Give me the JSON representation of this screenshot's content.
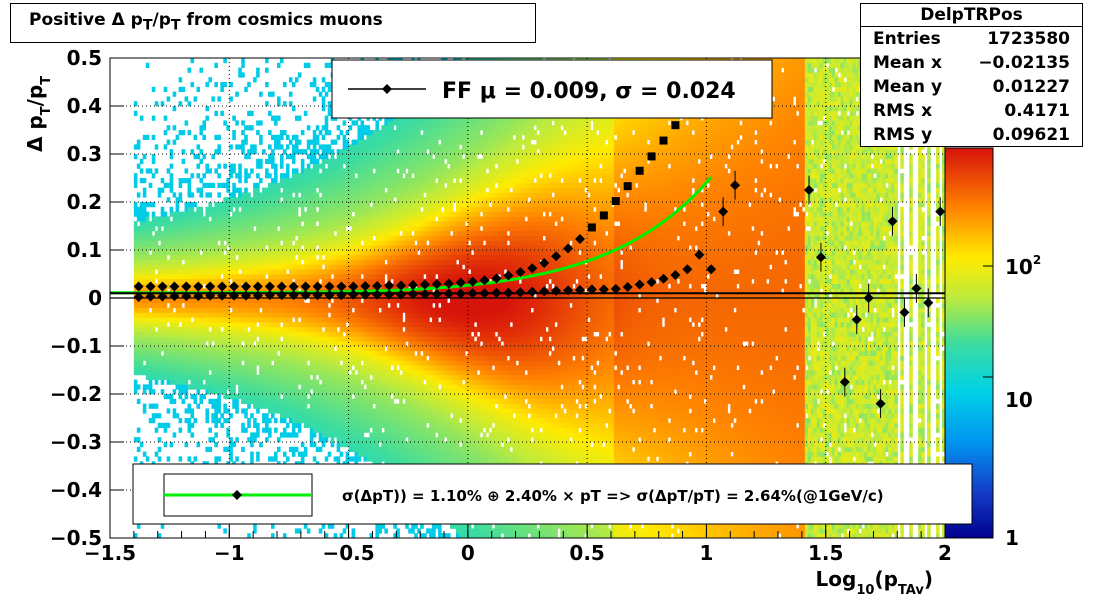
{
  "title": "Positive Δ p_T/p_T from cosmics muons",
  "stats": {
    "name": "DelpTRPos",
    "rows": [
      {
        "label": "Entries",
        "value": "1723580"
      },
      {
        "label": "Mean x",
        "value": "−0.02135"
      },
      {
        "label": "Mean y",
        "value": "0.01227"
      },
      {
        "label": "RMS x",
        "value": "0.4171"
      },
      {
        "label": "RMS y",
        "value": "0.09621"
      }
    ]
  },
  "colors": {
    "fit_curve": "#00ee00",
    "markers": "#000000",
    "frame": "#000000"
  },
  "chart_data": {
    "type": "heatmap",
    "title": "Positive Δ p_T/p_T from cosmics muons",
    "xlabel": "Log_10(p_TAv)",
    "ylabel": "Δ p_T/p_T",
    "xlim": [
      -1.5,
      2.0
    ],
    "ylim": [
      -0.5,
      0.5
    ],
    "x_ticks": [
      "−1.5",
      "−1",
      "−0.5",
      "0",
      "0.5",
      "1",
      "1.5",
      "2"
    ],
    "y_ticks": [
      "0.5",
      "0.4",
      "0.3",
      "0.2",
      "0.1",
      "0",
      "−0.1",
      "−0.2",
      "−0.3",
      "−0.4",
      "−0.5"
    ],
    "z_scale": "log",
    "z_ticks": [
      "1",
      "10",
      "10^2"
    ],
    "grid": true,
    "legend_top": "FF μ =  0.009, σ =   0.024",
    "legend_bottom": "σ(ΔpT)) =  1.10% ⊕  2.40% × pT => σ(ΔpT/pT) =  2.64%(@1GeV/c)",
    "sigma_points": {
      "x": [
        -1.38,
        -1.33,
        -1.28,
        -1.23,
        -1.18,
        -1.13,
        -1.08,
        -1.03,
        -0.98,
        -0.93,
        -0.88,
        -0.83,
        -0.78,
        -0.73,
        -0.68,
        -0.63,
        -0.58,
        -0.53,
        -0.48,
        -0.43,
        -0.38,
        -0.33,
        -0.28,
        -0.23,
        -0.18,
        -0.13,
        -0.08,
        -0.03,
        0.02,
        0.07,
        0.12,
        0.17,
        0.22,
        0.27,
        0.32,
        0.37,
        0.42,
        0.47,
        0.52,
        0.57,
        0.62,
        0.67,
        0.72,
        0.77,
        0.82,
        0.87
      ],
      "y": [
        0.024,
        0.024,
        0.024,
        0.024,
        0.024,
        0.024,
        0.024,
        0.024,
        0.024,
        0.024,
        0.024,
        0.024,
        0.024,
        0.024,
        0.024,
        0.024,
        0.024,
        0.024,
        0.024,
        0.025,
        0.025,
        0.026,
        0.026,
        0.027,
        0.028,
        0.029,
        0.03,
        0.032,
        0.034,
        0.037,
        0.041,
        0.047,
        0.054,
        0.062,
        0.073,
        0.087,
        0.103,
        0.123,
        0.147,
        0.172,
        0.202,
        0.233,
        0.265,
        0.295,
        0.328,
        0.36
      ]
    },
    "mean_points": {
      "x": [
        -1.38,
        -1.33,
        -1.28,
        -1.23,
        -1.18,
        -1.13,
        -1.08,
        -1.03,
        -0.98,
        -0.93,
        -0.88,
        -0.83,
        -0.78,
        -0.73,
        -0.68,
        -0.63,
        -0.58,
        -0.53,
        -0.48,
        -0.43,
        -0.38,
        -0.33,
        -0.28,
        -0.23,
        -0.18,
        -0.13,
        -0.08,
        -0.03,
        0.02,
        0.07,
        0.12,
        0.17,
        0.22,
        0.27,
        0.32,
        0.37,
        0.42,
        0.47,
        0.52,
        0.57,
        0.62,
        0.67,
        0.72,
        0.77,
        0.82,
        0.87,
        0.92,
        0.97,
        1.02
      ],
      "y": [
        0.002,
        0.003,
        0.003,
        0.004,
        0.004,
        0.004,
        0.005,
        0.005,
        0.005,
        0.005,
        0.005,
        0.006,
        0.006,
        0.006,
        0.006,
        0.006,
        0.006,
        0.006,
        0.007,
        0.007,
        0.007,
        0.007,
        0.007,
        0.008,
        0.008,
        0.008,
        0.009,
        0.009,
        0.01,
        0.01,
        0.011,
        0.011,
        0.012,
        0.013,
        0.014,
        0.015,
        0.016,
        0.017,
        0.018,
        0.018,
        0.019,
        0.023,
        0.028,
        0.033,
        0.04,
        0.048,
        0.06,
        0.09,
        0.06
      ]
    },
    "outlier_points": {
      "x": [
        1.07,
        1.12,
        1.43,
        1.48,
        1.58,
        1.63,
        1.68,
        1.73,
        1.78,
        1.83,
        1.88,
        1.93,
        1.98
      ],
      "y": [
        0.18,
        0.235,
        0.225,
        0.085,
        -0.175,
        -0.045,
        0.0,
        -0.22,
        0.16,
        -0.03,
        0.02,
        -0.01,
        0.18
      ]
    },
    "fit_curve": {
      "x_range": [
        -1.5,
        1.03
      ]
    },
    "mean_line_y": 0.01,
    "ref_line_y": 0.0
  }
}
